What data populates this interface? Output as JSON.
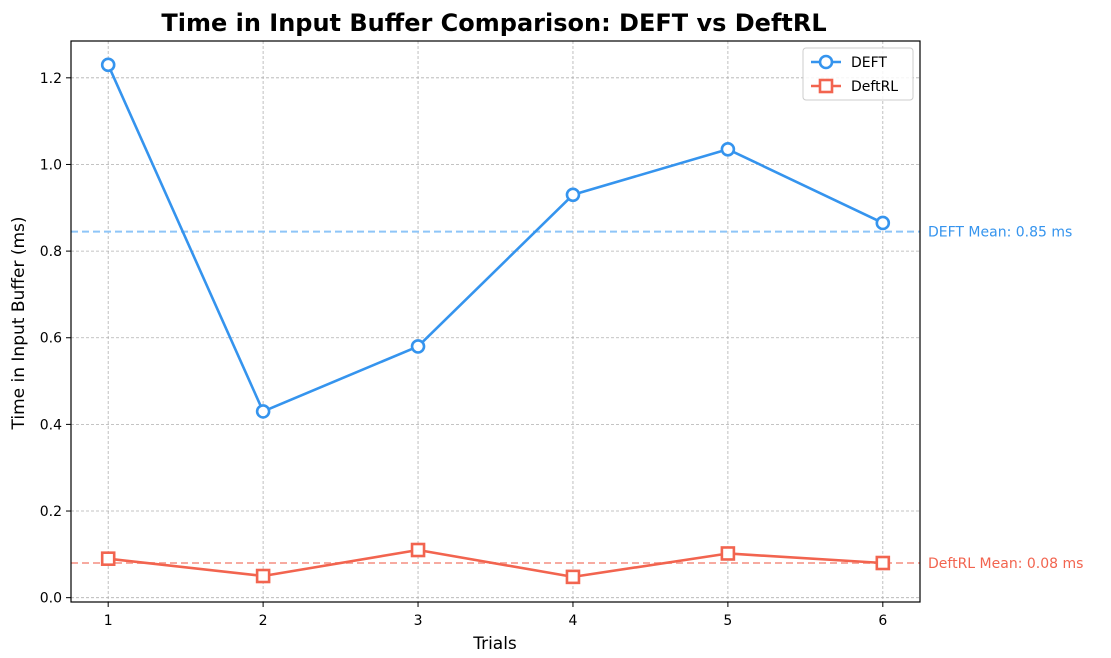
{
  "chart_data": {
    "type": "line",
    "title": "Time in Input Buffer Comparison: DEFT vs DeftRL",
    "xlabel": "Trials",
    "ylabel": "Time in Input Buffer (ms)",
    "x": [
      1,
      2,
      3,
      4,
      5,
      6
    ],
    "xlim": [
      0.76,
      6.24
    ],
    "ylim": [
      -0.01,
      1.285
    ],
    "yticks": [
      0.0,
      0.2,
      0.4,
      0.6,
      0.8,
      1.0,
      1.2
    ],
    "yticklabels": [
      "0.0",
      "0.2",
      "0.4",
      "0.6",
      "0.8",
      "1.0",
      "1.2"
    ],
    "xticklabels": [
      "1",
      "2",
      "3",
      "4",
      "5",
      "6"
    ],
    "grid": true,
    "legend_position": "top-right",
    "series": [
      {
        "name": "DEFT",
        "values": [
          1.23,
          0.43,
          0.58,
          0.93,
          1.035,
          0.865
        ],
        "color": "#3594ee",
        "marker": "circle",
        "mean": 0.845,
        "mean_label": "DEFT Mean: 0.85 ms",
        "mean_color": "#8ec5f8"
      },
      {
        "name": "DeftRL",
        "values": [
          0.09,
          0.05,
          0.11,
          0.048,
          0.102,
          0.08
        ],
        "color": "#f2644f",
        "marker": "square",
        "mean": 0.08,
        "mean_label": "DeftRL Mean: 0.08 ms",
        "mean_color": "#f7aaa0"
      }
    ]
  }
}
